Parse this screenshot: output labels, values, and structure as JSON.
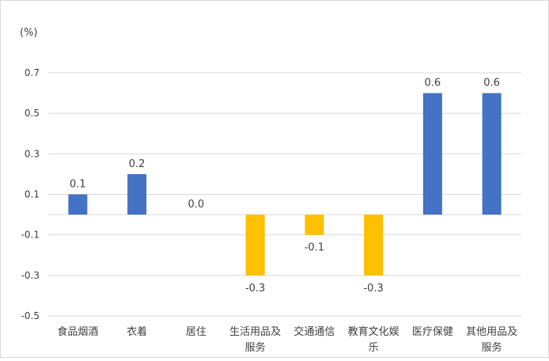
{
  "chart_data": {
    "type": "bar",
    "unit_label": "(%)",
    "categories": [
      [
        "食品烟酒"
      ],
      [
        "衣着"
      ],
      [
        "居住"
      ],
      [
        "生活用品及",
        "服务"
      ],
      [
        "交通通信"
      ],
      [
        "教育文化娱",
        "乐"
      ],
      [
        "医疗保健"
      ],
      [
        "其他用品及",
        "服务"
      ]
    ],
    "values": [
      0.1,
      0.2,
      0.0,
      -0.3,
      -0.1,
      -0.3,
      0.6,
      0.6
    ],
    "data_labels": [
      "0.1",
      "0.2",
      "0.0",
      "-0.3",
      "-0.1",
      "-0.3",
      "0.6",
      "0.6"
    ],
    "y_ticks": [
      "0.7",
      "0.5",
      "0.3",
      "0.1",
      "-0.1",
      "-0.3",
      "-0.5"
    ],
    "ylim": [
      -0.5,
      0.7
    ],
    "grid": true,
    "colors": {
      "positive": "#4472C4",
      "negative": "#FFC000",
      "grid": "#d9d9d9",
      "text": "#404040"
    }
  }
}
